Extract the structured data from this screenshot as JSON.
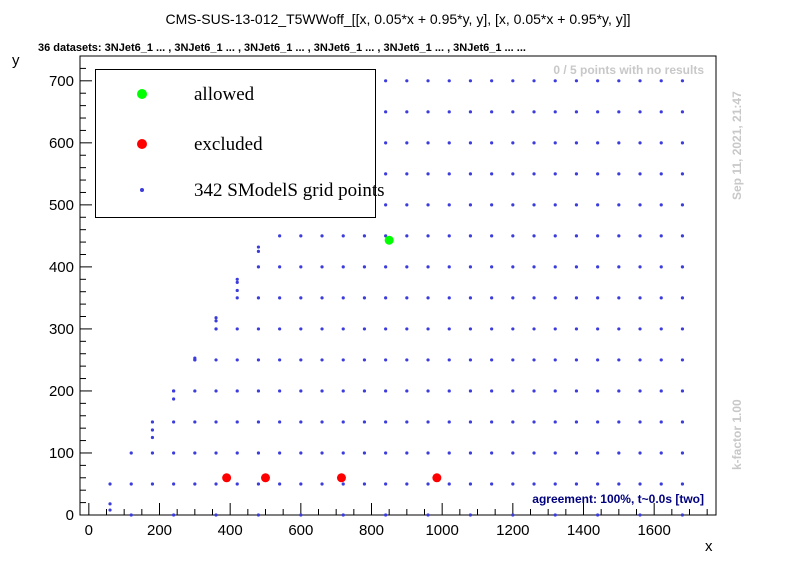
{
  "title": "CMS-SUS-13-012_T5WWoff_[[x, 0.05*x + 0.95*y, y], [x, 0.05*x + 0.95*y, y]]",
  "subtitle": "36 datasets: 3NJet6_1 ... , 3NJet6_1 ... , 3NJet6_1 ... , 3NJet6_1 ... , 3NJet6_1 ... , 3NJet6_1 ... ...",
  "timestamp": "Sep 11, 2021, 21:47",
  "kfactor": "k-factor 1.00",
  "no_results": "0 / 5 points with no results",
  "agreement": "agreement: 100%, t~0.0s [two]",
  "colors": {
    "allowed": "#00ff00",
    "excluded": "#ff0000",
    "grid": "#3c3cdc",
    "grid_faint": "#b4b4e6",
    "agreement": "#00007f"
  },
  "legend": {
    "allowed": "allowed",
    "excluded": "excluded",
    "grid": "342 SModelS grid points"
  },
  "chart_data": {
    "type": "scatter",
    "xlabel": "x",
    "ylabel": "y",
    "xlim": [
      -25,
      1775
    ],
    "ylim": [
      0,
      740
    ],
    "xticks": [
      0,
      200,
      400,
      600,
      800,
      1000,
      1200,
      1400,
      1600
    ],
    "yticks": [
      0,
      100,
      200,
      300,
      400,
      500,
      600,
      700
    ],
    "series": [
      {
        "name": "allowed",
        "points": [
          [
            850,
            443
          ]
        ]
      },
      {
        "name": "excluded",
        "points": [
          [
            390,
            60
          ],
          [
            500,
            60
          ],
          [
            715,
            60
          ],
          [
            985,
            60
          ]
        ]
      },
      {
        "name": "342 SModelS grid points",
        "grid": {
          "x_start": 60,
          "x_step": 60,
          "x_end": 1680,
          "y_start": 0,
          "y_step": 50,
          "y_end": 700,
          "y_max_factor": 0.82
        },
        "extra_points": [
          [
            60,
            8
          ],
          [
            60,
            18
          ],
          [
            180,
            125
          ],
          [
            180,
            137
          ],
          [
            240,
            187
          ],
          [
            240,
            200
          ],
          [
            300,
            250
          ],
          [
            300,
            253
          ],
          [
            360,
            300
          ],
          [
            360,
            313
          ],
          [
            360,
            318
          ],
          [
            420,
            362
          ],
          [
            420,
            375
          ],
          [
            420,
            380
          ],
          [
            480,
            425
          ],
          [
            480,
            432
          ],
          [
            540,
            487
          ],
          [
            540,
            493
          ],
          [
            600,
            550
          ],
          [
            600,
            557
          ],
          [
            660,
            605
          ],
          [
            660,
            612
          ],
          [
            720,
            658
          ],
          [
            720,
            668
          ],
          [
            720,
            675
          ],
          [
            780,
            700
          ]
        ]
      }
    ]
  }
}
